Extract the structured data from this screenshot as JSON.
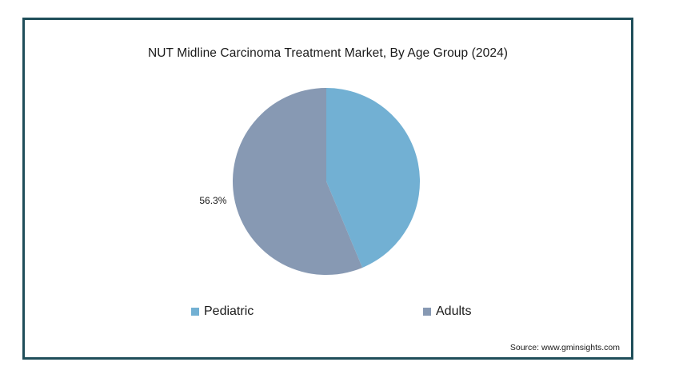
{
  "chart_data": {
    "type": "pie",
    "title": "NUT Midline Carcinoma Treatment Market, By Age Group (2024)",
    "slices": [
      {
        "name": "Pediatric",
        "value": 43.7,
        "color": "#72b0d3",
        "label": ""
      },
      {
        "name": "Adults",
        "value": 56.3,
        "color": "#8799b3",
        "label": "56.3%"
      }
    ],
    "legend": {
      "placement": "bottom"
    }
  },
  "source": "Source: www.gminsights.com"
}
